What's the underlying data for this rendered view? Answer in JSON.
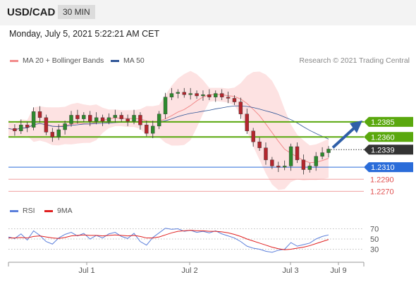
{
  "header": {
    "symbol": "USD/CAD",
    "timeframe": "30 MIN"
  },
  "datetime": "Monday, July 5, 2021 5:22:21 AM CET",
  "legend": {
    "main": [
      {
        "label": "MA 20 + Bollinger Bands",
        "color": "#f28b8b"
      },
      {
        "label": "MA 50",
        "color": "#2f5597"
      }
    ],
    "rsi": [
      {
        "label": "RSI",
        "color": "#5b7fdb"
      },
      {
        "label": "9MA",
        "color": "#e02020"
      }
    ]
  },
  "copyright": "Research © 2021 Trading Central",
  "chart_data": {
    "type": "candlestick",
    "x_labels": [
      "Jul 1",
      "Jul 2",
      "Jul 3",
      "Jul 9"
    ],
    "price_levels": [
      {
        "value": 1.2385,
        "label": "1.2385",
        "kind": "resistance",
        "color": "#5aa80e"
      },
      {
        "value": 1.236,
        "label": "1.2360",
        "kind": "resistance",
        "color": "#5aa80e"
      },
      {
        "value": 1.2339,
        "label": "1.2339",
        "kind": "last",
        "color": "#333333"
      },
      {
        "value": 1.231,
        "label": "1.2310",
        "kind": "pivot",
        "color": "#2a6cd9"
      },
      {
        "value": 1.229,
        "label": "1.2290",
        "kind": "support",
        "color": "#e05050"
      },
      {
        "value": 1.227,
        "label": "1.2270",
        "kind": "support",
        "color": "#e05050"
      }
    ],
    "price_range": [
      1.226,
      1.247
    ],
    "close_path": [
      1.2374,
      1.237,
      1.238,
      1.2376,
      1.2402,
      1.2392,
      1.2368,
      1.236,
      1.2372,
      1.2382,
      1.2396,
      1.239,
      1.2396,
      1.2386,
      1.2392,
      1.2386,
      1.2392,
      1.2396,
      1.239,
      1.2386,
      1.2396,
      1.238,
      1.2366,
      1.2378,
      1.2398,
      1.2426,
      1.2432,
      1.2434,
      1.243,
      1.2432,
      1.2428,
      1.243,
      1.2426,
      1.2432,
      1.2426,
      1.2424,
      1.2418,
      1.2398,
      1.237,
      1.2352,
      1.2342,
      1.2322,
      1.2312,
      1.231,
      1.2312,
      1.2344,
      1.2322,
      1.2306,
      1.2312,
      1.2328,
      1.2334,
      1.234
    ],
    "rsi": {
      "levels": [
        70,
        50,
        30
      ],
      "range": [
        10,
        90
      ],
      "values": [
        54,
        51,
        60,
        48,
        66,
        57,
        45,
        40,
        52,
        59,
        63,
        56,
        61,
        50,
        57,
        52,
        60,
        63,
        55,
        51,
        61,
        45,
        38,
        53,
        62,
        71,
        69,
        70,
        65,
        67,
        63,
        65,
        62,
        66,
        60,
        56,
        52,
        45,
        36,
        32,
        30,
        26,
        24,
        28,
        30,
        43,
        36,
        39,
        42,
        50,
        55,
        58
      ],
      "ma": [
        52,
        52,
        53,
        52,
        55,
        56,
        54,
        52,
        51,
        53,
        56,
        57,
        58,
        57,
        57,
        56,
        57,
        58,
        57,
        56,
        57,
        55,
        52,
        52,
        54,
        58,
        62,
        65,
        66,
        67,
        66,
        66,
        65,
        65,
        64,
        62,
        59,
        55,
        50,
        46,
        42,
        38,
        34,
        31,
        29,
        30,
        32,
        34,
        37,
        41,
        45,
        49
      ]
    }
  }
}
